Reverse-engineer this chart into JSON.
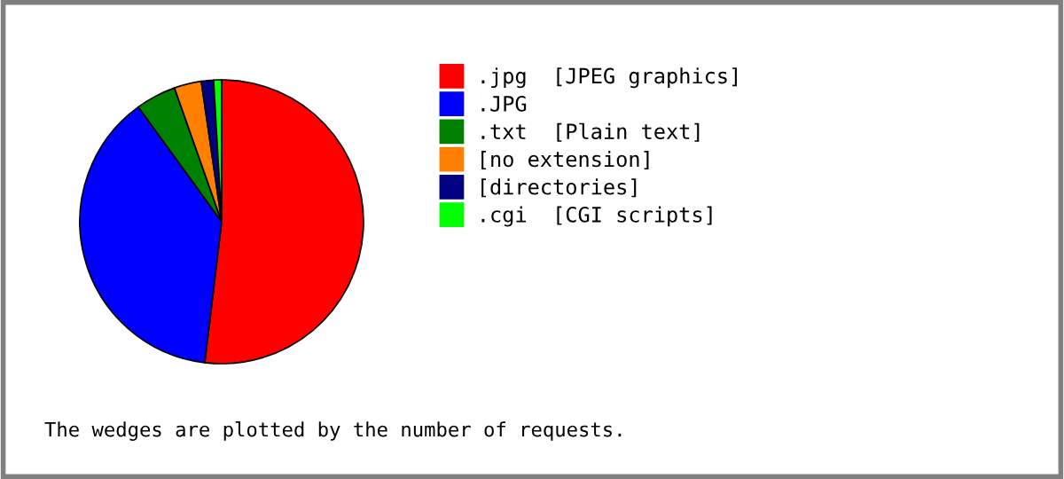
{
  "chart_data": {
    "type": "pie",
    "categories": [
      ".jpg  [JPEG graphics]",
      ".JPG",
      ".txt  [Plain text]",
      "[no extension]",
      "[directories]",
      ".cgi  [CGI scripts]"
    ],
    "values": [
      51.9,
      38.1,
      4.6,
      3.1,
      1.4,
      0.9
    ],
    "colors": [
      "#ff0000",
      "#0000ff",
      "#008000",
      "#ff8000",
      "#000080",
      "#00ff00"
    ],
    "legend": "right",
    "annotations": [
      "The wedges are plotted by the number of requests."
    ]
  }
}
